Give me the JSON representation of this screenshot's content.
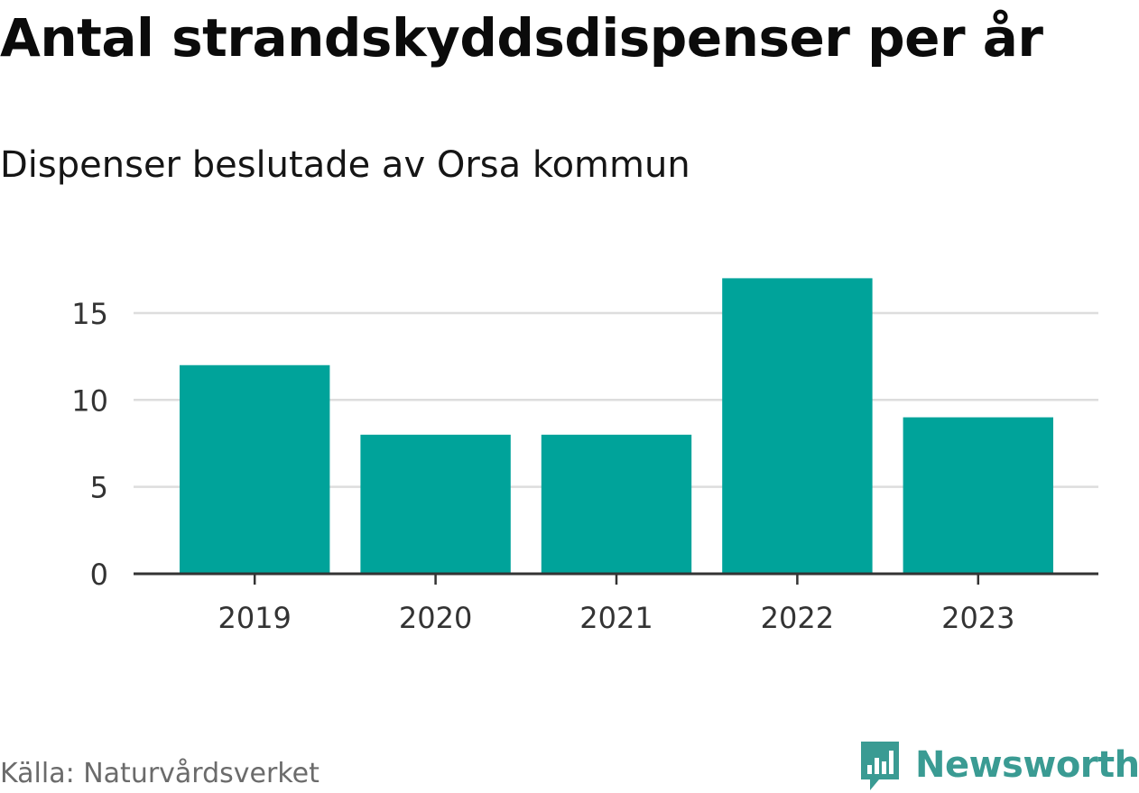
{
  "header": {
    "title": "Antal strandskyddsdispenser per år",
    "subtitle": "Dispenser beslutade av Orsa kommun"
  },
  "footer": {
    "source": "Källa: Naturvårdsverket",
    "brand": "Newsworthy",
    "brand_icon": "bar-chart-speech-bubble-icon"
  },
  "colors": {
    "bar": "#00a39a",
    "grid": "#dddddd",
    "axis": "#333333",
    "brand": "#3a9b93"
  },
  "chart_data": {
    "type": "bar",
    "title": "Antal strandskyddsdispenser per år",
    "subtitle": "Dispenser beslutade av Orsa kommun",
    "categories": [
      "2019",
      "2020",
      "2021",
      "2022",
      "2023"
    ],
    "values": [
      12,
      8,
      8,
      17,
      9
    ],
    "yticks": [
      "0",
      "5",
      "10",
      "15"
    ],
    "ylim": [
      0,
      18
    ],
    "grid": true
  }
}
